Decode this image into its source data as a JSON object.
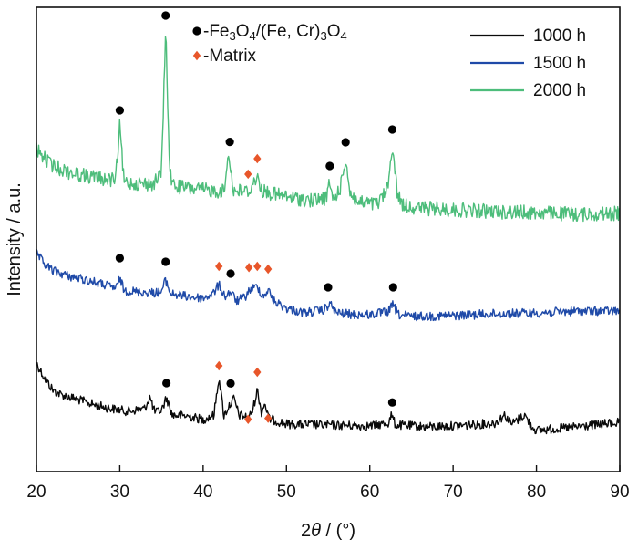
{
  "chart_data": {
    "type": "line",
    "xlabel_prefix": "2",
    "xlabel_italic": "θ",
    "xlabel_suffix": " / (°)",
    "ylabel": "Intensity / a.u.",
    "xlim": [
      20,
      90
    ],
    "xticks": [
      "20",
      "30",
      "40",
      "50",
      "60",
      "70",
      "80",
      "90"
    ],
    "yticks": [],
    "grid": false,
    "legend_position": "top-right",
    "series": [
      {
        "name": "1000 h",
        "color": "#0a0a0a",
        "points": [
          [
            20,
            398
          ],
          [
            21,
            415
          ],
          [
            22,
            428
          ],
          [
            23,
            433
          ],
          [
            25,
            438
          ],
          [
            27,
            444
          ],
          [
            29,
            448
          ],
          [
            31,
            451
          ],
          [
            33,
            448
          ],
          [
            33.6,
            435
          ],
          [
            34.2,
            452
          ],
          [
            35,
            450
          ],
          [
            35.6,
            436
          ],
          [
            36.3,
            455
          ],
          [
            38,
            456
          ],
          [
            40,
            460
          ],
          [
            41.3,
            455
          ],
          [
            41.9,
            413
          ],
          [
            42.5,
            456
          ],
          [
            43.1,
            445
          ],
          [
            43.7,
            437
          ],
          [
            44.3,
            455
          ],
          [
            45.5,
            458
          ],
          [
            46.0,
            448
          ],
          [
            46.5,
            427
          ],
          [
            47.0,
            452
          ],
          [
            47.4,
            442
          ],
          [
            47.9,
            459
          ],
          [
            50,
            465
          ],
          [
            55,
            466
          ],
          [
            60,
            467
          ],
          [
            62.2,
            464
          ],
          [
            62.6,
            455
          ],
          [
            63.1,
            466
          ],
          [
            67,
            468
          ],
          [
            70,
            467
          ],
          [
            75,
            464
          ],
          [
            76.2,
            455
          ],
          [
            77,
            465
          ],
          [
            78.6,
            455
          ],
          [
            79.3,
            466
          ],
          [
            80,
            472
          ],
          [
            85,
            468
          ],
          [
            90,
            463
          ]
        ],
        "peaks": [
          {
            "x": 35.6,
            "marker": "circle",
            "y_off": 10
          },
          {
            "x": 43.3,
            "marker": "circle",
            "y_off": 16
          },
          {
            "x": 62.7,
            "marker": "circle",
            "y_off": 10
          },
          {
            "x": 41.9,
            "marker": "diamond",
            "y_off": 6
          },
          {
            "x": 45.4,
            "marker": "diamond",
            "y_off": -8
          },
          {
            "x": 46.5,
            "marker": "diamond",
            "y_off": 13
          },
          {
            "x": 47.8,
            "marker": "diamond",
            "y_off": -9
          }
        ]
      },
      {
        "name": "1500 h",
        "color": "#1f4aa8",
        "points": [
          [
            20,
            278
          ],
          [
            21,
            290
          ],
          [
            22,
            297
          ],
          [
            24,
            303
          ],
          [
            26,
            307
          ],
          [
            28,
            312
          ],
          [
            29.6,
            316
          ],
          [
            30.0,
            305
          ],
          [
            30.5,
            318
          ],
          [
            32,
            320
          ],
          [
            34,
            321
          ],
          [
            35.0,
            320
          ],
          [
            35.5,
            307
          ],
          [
            36.1,
            322
          ],
          [
            38,
            325
          ],
          [
            40,
            327
          ],
          [
            41.2,
            322
          ],
          [
            41.9,
            312
          ],
          [
            42.6,
            325
          ],
          [
            43.3,
            320
          ],
          [
            44,
            330
          ],
          [
            45,
            326
          ],
          [
            45.6,
            318
          ],
          [
            46.5,
            314
          ],
          [
            47.2,
            325
          ],
          [
            47.8,
            318
          ],
          [
            48.5,
            330
          ],
          [
            50,
            338
          ],
          [
            52,
            343
          ],
          [
            54.5,
            340
          ],
          [
            55.2,
            333
          ],
          [
            56,
            343
          ],
          [
            58,
            345
          ],
          [
            60,
            345
          ],
          [
            62.2,
            342
          ],
          [
            62.8,
            334
          ],
          [
            63.4,
            345
          ],
          [
            65,
            347
          ],
          [
            70,
            346
          ],
          [
            75,
            344
          ],
          [
            80,
            343
          ],
          [
            85,
            341
          ],
          [
            90,
            341
          ]
        ],
        "peaks": [
          {
            "x": 30.0,
            "marker": "circle",
            "y_off": 16
          },
          {
            "x": 35.5,
            "marker": "circle",
            "y_off": 14
          },
          {
            "x": 43.3,
            "marker": "circle",
            "y_off": 14
          },
          {
            "x": 55.0,
            "marker": "circle",
            "y_off": 14
          },
          {
            "x": 62.8,
            "marker": "circle",
            "y_off": 13
          },
          {
            "x": 41.9,
            "marker": "diamond",
            "y_off": 14
          },
          {
            "x": 45.5,
            "marker": "diamond",
            "y_off": 20
          },
          {
            "x": 46.5,
            "marker": "diamond",
            "y_off": 16
          },
          {
            "x": 47.8,
            "marker": "diamond",
            "y_off": 17
          }
        ]
      },
      {
        "name": "2000 h",
        "color": "#4dbd7b",
        "points": [
          [
            20,
            164
          ],
          [
            21,
            174
          ],
          [
            22,
            182
          ],
          [
            24,
            189
          ],
          [
            26,
            193
          ],
          [
            28,
            196
          ],
          [
            29.5,
            198
          ],
          [
            30.0,
            138
          ],
          [
            30.5,
            200
          ],
          [
            32,
            201
          ],
          [
            34,
            202
          ],
          [
            35.0,
            190
          ],
          [
            35.5,
            32
          ],
          [
            36.0,
            190
          ],
          [
            36.5,
            204
          ],
          [
            38,
            206
          ],
          [
            40,
            208
          ],
          [
            42.5,
            210
          ],
          [
            43.1,
            166
          ],
          [
            43.6,
            209
          ],
          [
            45.5,
            210
          ],
          [
            46.4,
            194
          ],
          [
            47.2,
            210
          ],
          [
            50,
            216
          ],
          [
            53,
            220
          ],
          [
            54.8,
            217
          ],
          [
            55.2,
            200
          ],
          [
            55.6,
            220
          ],
          [
            56.5,
            205
          ],
          [
            57.1,
            173
          ],
          [
            57.6,
            210
          ],
          [
            58.5,
            222
          ],
          [
            61,
            224
          ],
          [
            62.2,
            205
          ],
          [
            62.7,
            158
          ],
          [
            63.3,
            212
          ],
          [
            64,
            225
          ],
          [
            66,
            228
          ],
          [
            70,
            230
          ],
          [
            75,
            232
          ],
          [
            80,
            233
          ],
          [
            85,
            235
          ],
          [
            90,
            234
          ]
        ],
        "peaks": [
          {
            "x": 30.0,
            "marker": "circle",
            "y_off": 11
          },
          {
            "x": 35.5,
            "marker": "circle",
            "y_off": 9
          },
          {
            "x": 43.2,
            "marker": "circle",
            "y_off": 13
          },
          {
            "x": 55.2,
            "marker": "circle",
            "y_off": 12
          },
          {
            "x": 57.1,
            "marker": "circle",
            "y_off": 11
          },
          {
            "x": 62.7,
            "marker": "circle",
            "y_off": 10
          },
          {
            "x": 45.4,
            "marker": "diamond",
            "y_off": 13
          },
          {
            "x": 46.5,
            "marker": "diamond",
            "y_off": 16
          }
        ]
      }
    ],
    "marker_legend": [
      {
        "marker": "circle",
        "parts": [
          {
            "t": "-Fe",
            "s": 0
          },
          {
            "t": "3",
            "s": 1
          },
          {
            "t": "O",
            "s": 0
          },
          {
            "t": "4",
            "s": 1
          },
          {
            "t": "/(Fe, Cr)",
            "s": 0
          },
          {
            "t": "3",
            "s": 1
          },
          {
            "t": "O",
            "s": 0
          },
          {
            "t": "4",
            "s": 1
          }
        ],
        "color": "#111111"
      },
      {
        "marker": "diamond",
        "parts": [
          {
            "t": "-Matrix",
            "s": 0
          }
        ],
        "color": "#e8562a"
      }
    ],
    "marker_colors": {
      "circle": "#000000",
      "diamond": "#e8562a"
    }
  }
}
